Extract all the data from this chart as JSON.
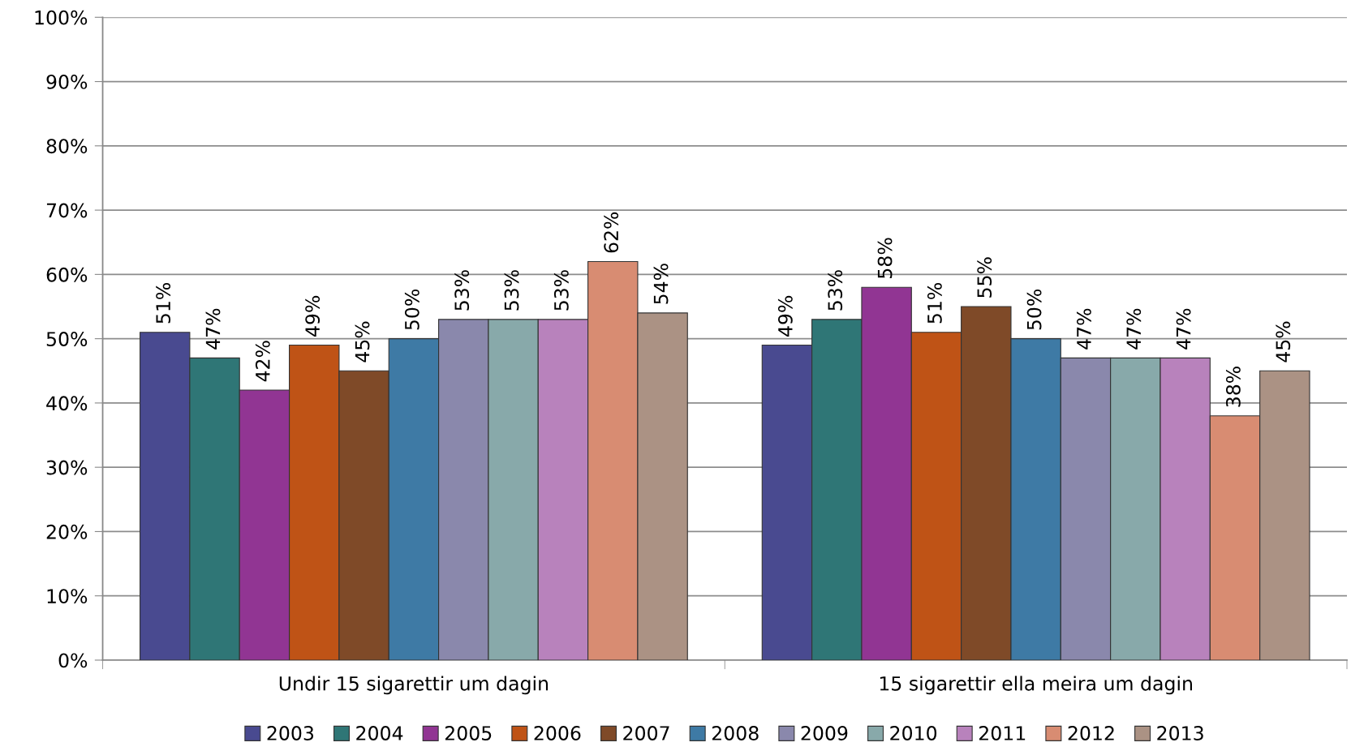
{
  "chart_data": {
    "type": "bar",
    "categories": [
      "Undir 15 sigarettir um dagin",
      "15 sigarettir ella meira um dagin"
    ],
    "series": [
      {
        "name": "2003",
        "color": "#494a90",
        "values": [
          51,
          49
        ],
        "value_labels": [
          "51%",
          "49%"
        ]
      },
      {
        "name": "2004",
        "color": "#2f7676",
        "values": [
          47,
          53
        ],
        "value_labels": [
          "47%",
          "53%"
        ]
      },
      {
        "name": "2005",
        "color": "#913593",
        "values": [
          42,
          58
        ],
        "value_labels": [
          "42%",
          "58%"
        ]
      },
      {
        "name": "2006",
        "color": "#bf5316",
        "values": [
          49,
          51
        ],
        "value_labels": [
          "49%",
          "51%"
        ]
      },
      {
        "name": "2007",
        "color": "#7f4a28",
        "values": [
          45,
          55
        ],
        "value_labels": [
          "45%",
          "55%"
        ]
      },
      {
        "name": "2008",
        "color": "#3e7aa5",
        "values": [
          50,
          50
        ],
        "value_labels": [
          "50%",
          "50%"
        ]
      },
      {
        "name": "2009",
        "color": "#8a88ac",
        "values": [
          53,
          47
        ],
        "value_labels": [
          "53%",
          "47%"
        ]
      },
      {
        "name": "2010",
        "color": "#88a9aa",
        "values": [
          53,
          47
        ],
        "value_labels": [
          "53%",
          "47%"
        ]
      },
      {
        "name": "2011",
        "color": "#b882bc",
        "values": [
          53,
          47
        ],
        "value_labels": [
          "53%",
          "47%"
        ]
      },
      {
        "name": "2012",
        "color": "#d88c72",
        "values": [
          62,
          38
        ],
        "value_labels": [
          "62%",
          "38%"
        ]
      },
      {
        "name": "2013",
        "color": "#ab9284",
        "values": [
          54,
          45
        ],
        "value_labels": [
          "54%",
          "45%"
        ]
      }
    ],
    "ylim": [
      0,
      100
    ],
    "yticks": [
      {
        "value": 0,
        "label": "0%"
      },
      {
        "value": 10,
        "label": "10%"
      },
      {
        "value": 20,
        "label": "20%"
      },
      {
        "value": 30,
        "label": "30%"
      },
      {
        "value": 40,
        "label": "40%"
      },
      {
        "value": 50,
        "label": "50%"
      },
      {
        "value": 60,
        "label": "60%"
      },
      {
        "value": 70,
        "label": "70%"
      },
      {
        "value": 80,
        "label": "80%"
      },
      {
        "value": 90,
        "label": "90%"
      },
      {
        "value": 100,
        "label": "100%"
      }
    ],
    "grid": "y",
    "legend": "bottom"
  }
}
